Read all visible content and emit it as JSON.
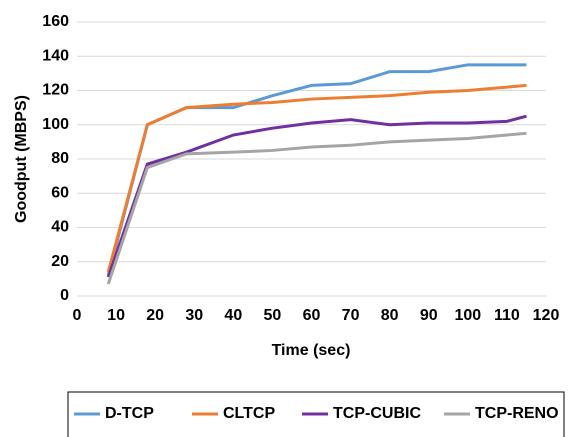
{
  "chart_data": {
    "type": "line",
    "x_label": "Time (sec)",
    "y_label": "Goodput (MBPS)",
    "x": [
      8,
      18,
      28,
      40,
      50,
      60,
      70,
      80,
      90,
      100,
      110,
      115
    ],
    "series": [
      {
        "name": "D-TCP",
        "color": "#5b9bd5",
        "values": [
          12,
          100,
          110,
          110,
          117,
          123,
          124,
          131,
          131,
          135,
          135,
          135
        ]
      },
      {
        "name": "CLTCP",
        "color": "#ed7d31",
        "values": [
          14,
          100,
          110,
          112,
          113,
          115,
          116,
          117,
          119,
          120,
          122,
          123
        ]
      },
      {
        "name": "TCP-CUBIC",
        "color": "#7030a0",
        "values": [
          11,
          77,
          84,
          94,
          98,
          101,
          103,
          100,
          101,
          101,
          102,
          105
        ]
      },
      {
        "name": "TCP-RENO",
        "color": "#a5a5a5",
        "values": [
          7,
          75,
          83,
          84,
          85,
          87,
          88,
          90,
          91,
          92,
          94,
          95
        ]
      }
    ],
    "xlim": [
      0,
      120
    ],
    "xticks": [
      0,
      10,
      20,
      30,
      40,
      50,
      60,
      70,
      80,
      90,
      100,
      110,
      120
    ],
    "ylim": [
      0,
      160
    ],
    "yticks": [
      0,
      20,
      40,
      60,
      80,
      100,
      120,
      140,
      160
    ],
    "grid": true,
    "legend": "bottom"
  }
}
